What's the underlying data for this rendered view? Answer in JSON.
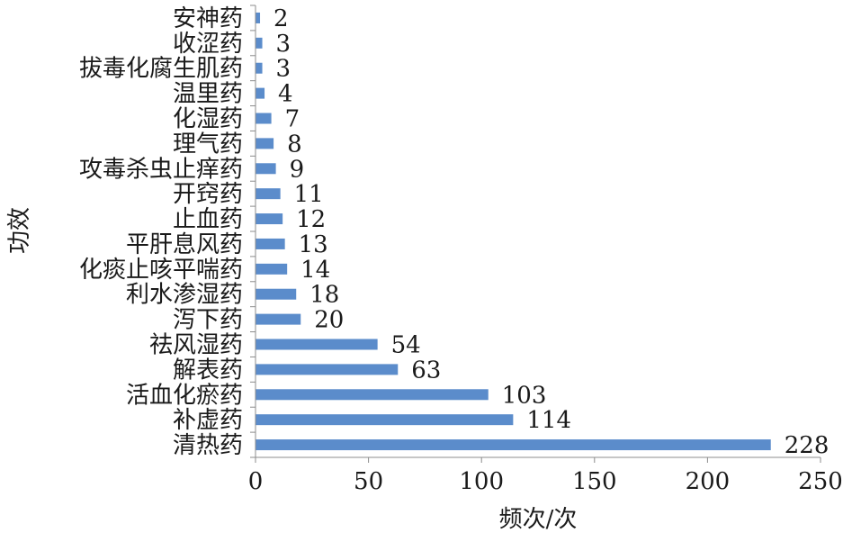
{
  "chart_data": {
    "type": "bar",
    "orientation": "horizontal",
    "title": "",
    "xlabel": "频次/次",
    "ylabel": "功效",
    "xlim": [
      0,
      250
    ],
    "xticks": [
      0,
      50,
      100,
      150,
      200,
      250
    ],
    "grid": false,
    "legend": "none",
    "bar_color": "#5b8ccb",
    "categories": [
      "安神药",
      "收涩药",
      "拔毒化腐生肌药",
      "温里药",
      "化湿药",
      "理气药",
      "攻毒杀虫止痒药",
      "开窍药",
      "止血药",
      "平肝息风药",
      "化痰止咳平喘药",
      "利水渗湿药",
      "泻下药",
      "祛风湿药",
      "解表药",
      "活血化瘀药",
      "补虚药",
      "清热药"
    ],
    "values": [
      2,
      3,
      3,
      4,
      7,
      8,
      9,
      11,
      12,
      13,
      14,
      18,
      20,
      54,
      63,
      103,
      114,
      228
    ]
  }
}
